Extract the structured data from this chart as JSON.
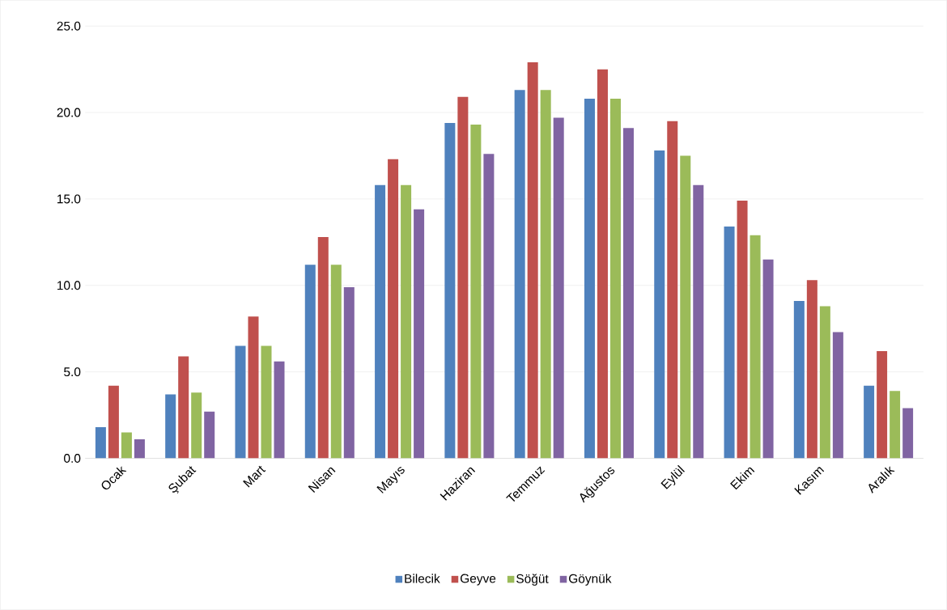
{
  "chart_data": {
    "type": "bar",
    "categories": [
      "Ocak",
      "Şubat",
      "Mart",
      "Nisan",
      "Mayıs",
      "Haziran",
      "Temmuz",
      "Ağustos",
      "Eylül",
      "Ekim",
      "Kasım",
      "Aralık"
    ],
    "series": [
      {
        "name": "Bilecik",
        "color": "#4f81bd",
        "values": [
          1.8,
          3.7,
          6.5,
          11.2,
          15.8,
          19.4,
          21.3,
          20.8,
          17.8,
          13.4,
          9.1,
          4.2
        ]
      },
      {
        "name": "Geyve",
        "color": "#c0504d",
        "values": [
          4.2,
          5.9,
          8.2,
          12.8,
          17.3,
          20.9,
          22.9,
          22.5,
          19.5,
          14.9,
          10.3,
          6.2
        ]
      },
      {
        "name": "Söğüt",
        "color": "#9bbb59",
        "values": [
          1.5,
          3.8,
          6.5,
          11.2,
          15.8,
          19.3,
          21.3,
          20.8,
          17.5,
          12.9,
          8.8,
          3.9
        ]
      },
      {
        "name": "Göynük",
        "color": "#8064a2",
        "values": [
          1.1,
          2.7,
          5.6,
          9.9,
          14.4,
          17.6,
          19.7,
          19.1,
          15.8,
          11.5,
          7.3,
          2.9
        ]
      }
    ],
    "ylim": [
      0,
      25
    ],
    "yticks": [
      {
        "value": 0,
        "label": "0.0"
      },
      {
        "value": 5,
        "label": "5.0"
      },
      {
        "value": 10,
        "label": "10.0"
      },
      {
        "value": 15,
        "label": "15.0"
      },
      {
        "value": 20,
        "label": "20.0"
      },
      {
        "value": 25,
        "label": "25.0"
      }
    ],
    "grid": "y",
    "legend": "bottom"
  }
}
